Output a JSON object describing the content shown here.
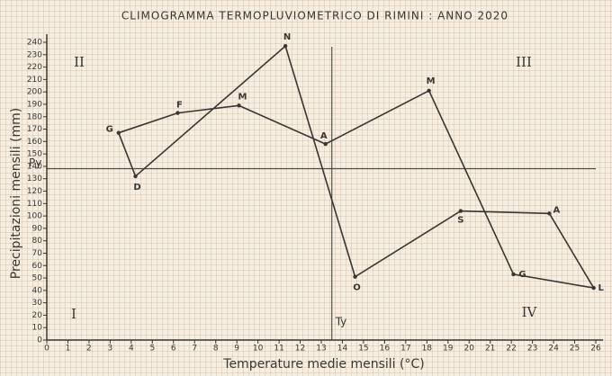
{
  "chart_data": {
    "type": "line",
    "title": "CLIMOGRAMMA TERMOPLUVIOMETRICO DI RIMINI : ANNO 2020",
    "x_label": "Temperature medie mensili (°C)",
    "y_label": "Precipitazioni mensili (mm)",
    "points": [
      "G",
      "F",
      "M",
      "A",
      "M",
      "G",
      "L",
      "A",
      "S",
      "O",
      "N",
      "D"
    ],
    "x": [
      3.4,
      6.2,
      9.1,
      13.2,
      18.1,
      22.1,
      25.9,
      23.8,
      19.6,
      14.6,
      11.3,
      4.2
    ],
    "series": [
      {
        "color": "#3a3633",
        "values": [
          167,
          183,
          189,
          158,
          201,
          53,
          42,
          102,
          104,
          51,
          237,
          132
        ]
      }
    ],
    "closed": true,
    "xlim": [
      0,
      26
    ],
    "ylim": [
      0,
      240
    ],
    "xticks": [
      0,
      1,
      2,
      3,
      4,
      5,
      6,
      7,
      8,
      9,
      10,
      11,
      12,
      13,
      14,
      15,
      16,
      17,
      18,
      19,
      20,
      21,
      22,
      23,
      24,
      25,
      26
    ],
    "yticks": [
      0,
      10,
      20,
      30,
      40,
      50,
      60,
      70,
      80,
      90,
      100,
      110,
      120,
      130,
      140,
      150,
      160,
      170,
      180,
      190,
      200,
      210,
      220,
      230,
      240
    ],
    "reference_lines": {
      "y": {
        "label": "Py",
        "value": 138
      },
      "x": {
        "label": "Ty",
        "value": 13.5
      }
    },
    "quadrants": [
      "I",
      "II",
      "III",
      "IV"
    ]
  }
}
